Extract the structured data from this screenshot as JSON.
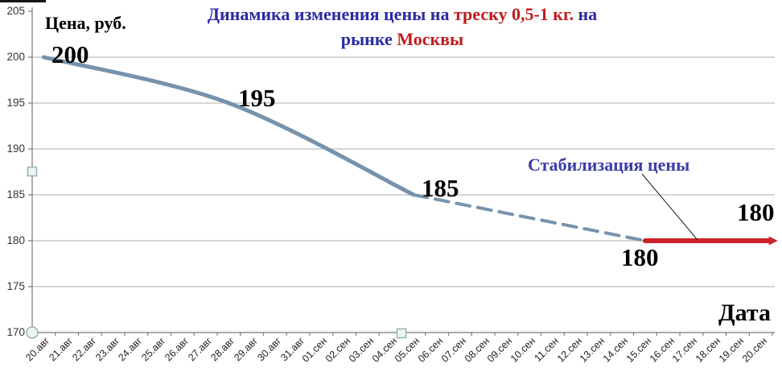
{
  "title": {
    "line1": [
      {
        "text": "Динамика изменения цены на ",
        "color": "#2a2aa4"
      },
      {
        "text": "треску 0,5-1 кг.",
        "color": "#c11b1e"
      },
      {
        "text": " на",
        "color": "#2a2aa4"
      }
    ],
    "line2": [
      {
        "text": "рынке ",
        "color": "#2a2aa4"
      },
      {
        "text": "Москвы",
        "color": "#c11b1e"
      }
    ]
  },
  "colors": {
    "series_blue": "#7693ad",
    "series_red": "#cd2128",
    "title_blue": "#2a2aa4",
    "title_red": "#c11b1e",
    "annotation_blue": "#3d3da8",
    "grid_gray": "#aeaeae",
    "axis_gray": "#7a7a7a"
  },
  "chart_data": {
    "type": "line",
    "title": "Динамика изменения цены на треску 0,5-1 кг. на рынке Москвы",
    "xlabel": "Дата",
    "ylabel": "Цена, руб.",
    "ylim": [
      170,
      205
    ],
    "grid": true,
    "legend": false,
    "y_ticks": [
      205,
      200,
      195,
      190,
      185,
      180,
      175,
      170
    ],
    "x_categories": [
      "20.авг",
      "21.авг",
      "22.авг",
      "23.авг",
      "24.авг",
      "25.авг",
      "26.авг",
      "27.авг",
      "28.авг",
      "29.авг",
      "30.авг",
      "31.авг",
      "01.сен",
      "02.сен",
      "03.сен",
      "04.сен",
      "05.сен",
      "06.сен",
      "07.сен",
      "08.сен",
      "09.сен",
      "10.сен",
      "11.сен",
      "12.сен",
      "13.сен",
      "14.сен",
      "15.сен",
      "16.сен",
      "17.сен",
      "18.сен",
      "19.сен",
      "20.сен"
    ],
    "segments": [
      {
        "id": "price-actual-solid",
        "smooth": true,
        "color": "#7693ad",
        "width": 5,
        "points": [
          [
            "20.авг",
            200
          ],
          [
            "28.авг",
            195
          ],
          [
            "05.сен",
            185
          ]
        ]
      },
      {
        "id": "price-trend-dashed",
        "dash": "17 10",
        "color": "#7693ad",
        "width": 4,
        "points": [
          [
            "05.сен",
            185
          ],
          [
            "15.сен",
            180
          ]
        ]
      },
      {
        "id": "price-stabilized-red",
        "arrow": true,
        "color": "#cd2128",
        "width": 6,
        "points": [
          [
            "15.сен",
            180
          ],
          [
            "20.сен",
            180
          ]
        ]
      }
    ],
    "data_labels": [
      "200",
      "195",
      "185",
      "180",
      "180"
    ],
    "annotation": "Стабилизация цены"
  }
}
